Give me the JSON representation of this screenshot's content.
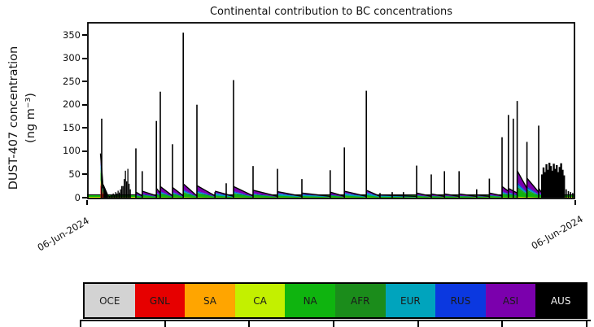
{
  "figure": {
    "title": "Continental contribution to BC concentrations",
    "ylabel_line1": "DUST-407 concentration",
    "ylabel_line2": "(ng m⁻³)",
    "x_start_label": "06-Jun-2024",
    "x_end_label": "06-Jun-2024"
  },
  "chart_data": {
    "type": "area",
    "title": "Continental contribution to BC concentrations",
    "xlabel": "",
    "ylabel": "DUST-407 concentration (ng m⁻³)",
    "ylim": [
      0,
      368
    ],
    "yticks": [
      0,
      50,
      100,
      150,
      200,
      250,
      300,
      350
    ],
    "x_axis": {
      "start": "06-Jun-2024",
      "end": "06-Jun-2024"
    },
    "grid": false,
    "legend_position": "bottom-strip",
    "legend": [
      {
        "label": "OCE",
        "color": "#d3d3d3",
        "text_color": "#1a1a1a"
      },
      {
        "label": "GNL",
        "color": "#e60000",
        "text_color": "#1a1a1a"
      },
      {
        "label": "SA",
        "color": "#ffa500",
        "text_color": "#1a1a1a"
      },
      {
        "label": "CA",
        "color": "#c3f000",
        "text_color": "#1a1a1a"
      },
      {
        "label": "NA",
        "color": "#0fb40f",
        "text_color": "#1a1a1a"
      },
      {
        "label": "AFR",
        "color": "#1b8c1b",
        "text_color": "#1a1a1a"
      },
      {
        "label": "EUR",
        "color": "#00a4bd",
        "text_color": "#1a1a1a"
      },
      {
        "label": "RUS",
        "color": "#0b38e0",
        "text_color": "#1a1a1a"
      },
      {
        "label": "ASI",
        "color": "#7b00ad",
        "text_color": "#1a1a1a"
      },
      {
        "label": "AUS",
        "color": "#000000",
        "text_color": "#f2f2f2"
      }
    ],
    "colors": {
      "OCE": "#d3d3d3",
      "GNL": "#e60000",
      "SA": "#ffa500",
      "CA": "#c3f000",
      "NA": "#0fb40f",
      "AFR": "#1b8c1b",
      "EUR": "#00a4bd",
      "RUS": "#0b38e0",
      "ASI": "#7b00ad",
      "AUS": "#000000"
    },
    "spikes": [
      [
        0.03,
        170
      ],
      [
        0.1,
        106
      ],
      [
        0.113,
        57
      ],
      [
        0.142,
        165
      ],
      [
        0.15,
        228
      ],
      [
        0.175,
        115
      ],
      [
        0.197,
        355
      ],
      [
        0.225,
        200
      ],
      [
        0.262,
        12
      ],
      [
        0.285,
        31
      ],
      [
        0.3,
        253
      ],
      [
        0.34,
        68
      ],
      [
        0.39,
        62
      ],
      [
        0.44,
        40
      ],
      [
        0.498,
        59
      ],
      [
        0.527,
        108
      ],
      [
        0.572,
        230
      ],
      [
        0.6,
        10
      ],
      [
        0.625,
        12
      ],
      [
        0.648,
        12
      ],
      [
        0.675,
        69
      ],
      [
        0.705,
        50
      ],
      [
        0.732,
        57
      ],
      [
        0.762,
        57
      ],
      [
        0.798,
        18
      ],
      [
        0.824,
        41
      ],
      [
        0.85,
        130
      ],
      [
        0.863,
        178
      ],
      [
        0.873,
        170
      ],
      [
        0.881,
        208
      ],
      [
        0.901,
        120
      ],
      [
        0.925,
        155
      ]
    ],
    "mixes": {
      "std": [
        [
          "CA",
          0.04
        ],
        [
          "NA",
          0.3
        ],
        [
          "AFR",
          0.06
        ],
        [
          "EUR",
          0.1
        ],
        [
          "RUS",
          0.08
        ],
        [
          "ASI",
          0.42
        ]
      ],
      "cyan": [
        [
          "CA",
          0.05
        ],
        [
          "NA",
          0.3
        ],
        [
          "EUR",
          0.3
        ],
        [
          "RUS",
          0.1
        ],
        [
          "ASI",
          0.25
        ]
      ],
      "rainbow": [
        [
          "GNL",
          0.3
        ],
        [
          "SA",
          0.05
        ],
        [
          "CA",
          0.05
        ],
        [
          "NA",
          0.22
        ],
        [
          "AFR",
          0.05
        ],
        [
          "EUR",
          0.08
        ],
        [
          "RUS",
          0.08
        ],
        [
          "ASI",
          0.17
        ]
      ],
      "black": [
        [
          "AUS",
          1
        ]
      ]
    },
    "wedges": [
      {
        "x0": 0.0275,
        "x1": 0.033,
        "h0": 95,
        "h1": 20,
        "mix": "rainbow"
      },
      {
        "x0": 0.033,
        "x1": 0.042,
        "h0": 28,
        "h1": 6,
        "mix": "black"
      },
      {
        "x0": 0.1,
        "x1": 0.113,
        "h0": 12,
        "h1": 4,
        "mix": "std"
      },
      {
        "x0": 0.113,
        "x1": 0.142,
        "h0": 14,
        "h1": 4,
        "mix": "std"
      },
      {
        "x0": 0.142,
        "x1": 0.15,
        "h0": 20,
        "h1": 10,
        "mix": "std"
      },
      {
        "x0": 0.15,
        "x1": 0.175,
        "h0": 24,
        "h1": 4,
        "mix": "std"
      },
      {
        "x0": 0.175,
        "x1": 0.197,
        "h0": 22,
        "h1": 4,
        "mix": "std"
      },
      {
        "x0": 0.197,
        "x1": 0.225,
        "h0": 30,
        "h1": 4,
        "mix": "std"
      },
      {
        "x0": 0.225,
        "x1": 0.262,
        "h0": 26,
        "h1": 4,
        "mix": "std"
      },
      {
        "x0": 0.262,
        "x1": 0.3,
        "h0": 14,
        "h1": 3,
        "mix": "cyan"
      },
      {
        "x0": 0.3,
        "x1": 0.34,
        "h0": 24,
        "h1": 4,
        "mix": "std"
      },
      {
        "x0": 0.34,
        "x1": 0.39,
        "h0": 16,
        "h1": 3,
        "mix": "std"
      },
      {
        "x0": 0.39,
        "x1": 0.44,
        "h0": 13,
        "h1": 3,
        "mix": "cyan"
      },
      {
        "x0": 0.44,
        "x1": 0.498,
        "h0": 10,
        "h1": 3,
        "mix": "cyan"
      },
      {
        "x0": 0.498,
        "x1": 0.527,
        "h0": 12,
        "h1": 3,
        "mix": "std"
      },
      {
        "x0": 0.527,
        "x1": 0.572,
        "h0": 14,
        "h1": 3,
        "mix": "cyan"
      },
      {
        "x0": 0.572,
        "x1": 0.6,
        "h0": 16,
        "h1": 3,
        "mix": "cyan"
      },
      {
        "x0": 0.6,
        "x1": 0.675,
        "h0": 6,
        "h1": 3,
        "mix": "cyan"
      },
      {
        "x0": 0.675,
        "x1": 0.705,
        "h0": 10,
        "h1": 3,
        "mix": "std"
      },
      {
        "x0": 0.705,
        "x1": 0.732,
        "h0": 8,
        "h1": 3,
        "mix": "std"
      },
      {
        "x0": 0.732,
        "x1": 0.762,
        "h0": 8,
        "h1": 3,
        "mix": "std"
      },
      {
        "x0": 0.762,
        "x1": 0.798,
        "h0": 8,
        "h1": 3,
        "mix": "std"
      },
      {
        "x0": 0.798,
        "x1": 0.824,
        "h0": 6,
        "h1": 3,
        "mix": "std"
      },
      {
        "x0": 0.824,
        "x1": 0.85,
        "h0": 10,
        "h1": 4,
        "mix": "std"
      },
      {
        "x0": 0.85,
        "x1": 0.863,
        "h0": 24,
        "h1": 14,
        "mix": "std"
      },
      {
        "x0": 0.863,
        "x1": 0.881,
        "h0": 20,
        "h1": 10,
        "mix": "std"
      },
      {
        "x0": 0.881,
        "x1": 0.901,
        "h0": 58,
        "h1": 20,
        "mix": "std"
      },
      {
        "x0": 0.901,
        "x1": 0.925,
        "h0": 42,
        "h1": 12,
        "mix": "std"
      },
      {
        "x0": 0.925,
        "x1": 0.932,
        "h0": 20,
        "h1": 10,
        "mix": "std"
      }
    ],
    "noise": [
      {
        "x0": 0.04,
        "x1": 0.09,
        "bar_w": 1.3,
        "heights": [
          8,
          5,
          4,
          5,
          6,
          9,
          7,
          12,
          9,
          15,
          11,
          18,
          25,
          25,
          40,
          58,
          35,
          62,
          30,
          18
        ]
      },
      {
        "x0": 0.93,
        "x1": 0.978,
        "bar_w": 2.4,
        "heights": [
          50,
          65,
          55,
          72,
          60,
          75,
          68,
          58,
          73,
          62,
          70,
          55,
          66,
          74,
          60,
          48
        ]
      },
      {
        "x0": 0.98,
        "x1": 0.998,
        "bar_w": 1.6,
        "heights": [
          18,
          14,
          12,
          10
        ]
      }
    ],
    "base": {
      "total_height_units": 7,
      "layers": [
        [
          "CA",
          1
        ],
        [
          "NA",
          2
        ],
        [
          "AUS",
          1
        ]
      ]
    }
  },
  "legend_axis": {
    "tick_count": 7
  }
}
